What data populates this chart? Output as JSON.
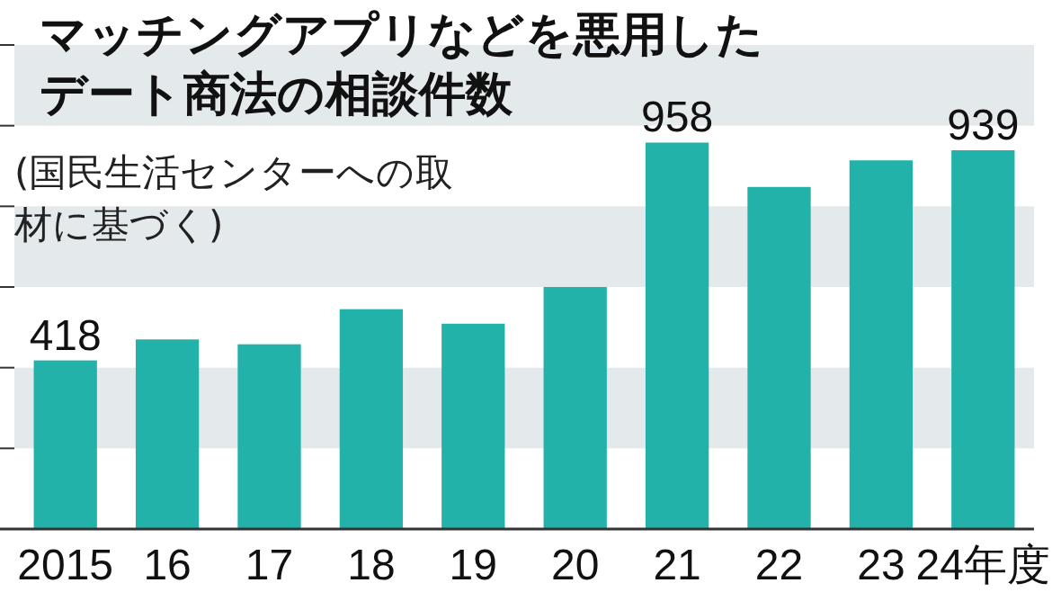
{
  "chart_data": {
    "type": "bar",
    "title": "マッチングアプリなどを悪用したデート商法の相談件数",
    "subtitle": "(国民生活センターへの取材に基づく)",
    "categories": [
      "2015",
      "16",
      "17",
      "18",
      "19",
      "20",
      "21",
      "22",
      "23",
      "24年度"
    ],
    "values": [
      418,
      470,
      458,
      545,
      509,
      600,
      958,
      848,
      914,
      939
    ],
    "value_labels": [
      "418",
      null,
      null,
      null,
      null,
      null,
      "958",
      null,
      null,
      "939"
    ],
    "color": "#22b2aa",
    "ylim": [
      0,
      1200
    ],
    "yticks": [
      {
        "value": 0,
        "label": null
      },
      {
        "value": 200,
        "label": null
      },
      {
        "value": 400,
        "label": null
      },
      {
        "value": 600,
        "label": null
      },
      {
        "value": 800,
        "label": null
      },
      {
        "value": 1000,
        "label": null
      },
      {
        "value": 1200,
        "label": null
      }
    ],
    "tick_labels": "x",
    "bands": [
      {
        "axis": "y",
        "from": 200,
        "to": 400,
        "color": "#e4e9ec"
      },
      {
        "axis": "y",
        "from": 600,
        "to": 800,
        "color": "#e4e9ec"
      },
      {
        "axis": "y",
        "from": 1000,
        "to": 1200,
        "color": "#e4e9ec"
      }
    ]
  }
}
